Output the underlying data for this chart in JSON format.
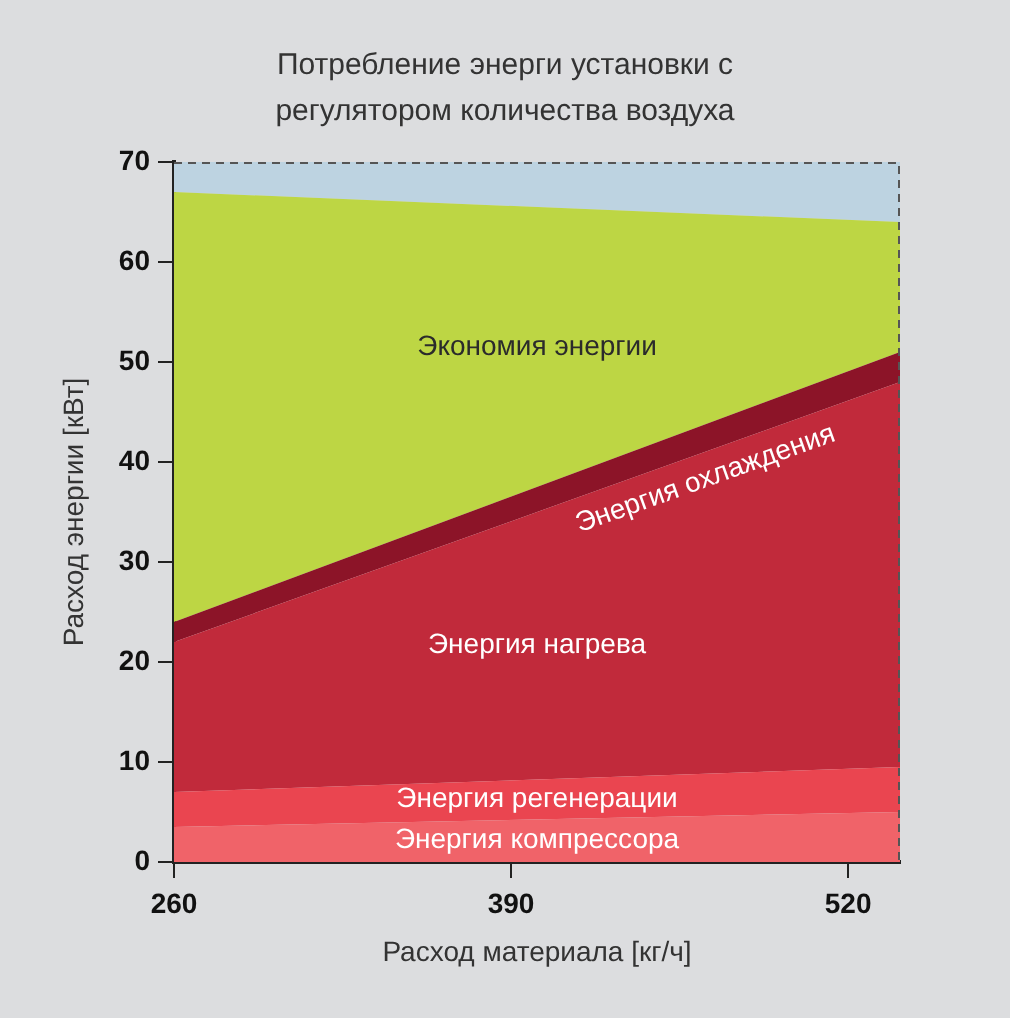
{
  "chart_data": {
    "type": "area",
    "title": "Потребление энерги установки с регулятором количества воздуха",
    "xlabel": "Расход материала [кг/ч]",
    "ylabel": "Расход энергии [кВт]",
    "x": [
      260,
      540
    ],
    "stacked": true,
    "series": [
      {
        "name": "Энергия компрессора",
        "color": "#f06369",
        "values": [
          3.5,
          5
        ]
      },
      {
        "name": "Энергия регенерации",
        "color": "#ea4550",
        "values": [
          3.5,
          4.5
        ]
      },
      {
        "name": "Энергия нагрева",
        "color": "#c12a3b",
        "values": [
          15,
          38.5
        ]
      },
      {
        "name": "Энергия охлаждения",
        "color": "#8c1428",
        "values": [
          2,
          3
        ]
      },
      {
        "name": "Экономия энергии",
        "color": "#bdd644",
        "values": [
          43,
          13
        ]
      },
      {
        "color": "#bdd3e1",
        "values": [
          3,
          6
        ]
      }
    ],
    "xlim": [
      260,
      540
    ],
    "xticks": [
      260,
      390,
      520
    ],
    "ylim": [
      0,
      70
    ],
    "yticks": [
      0,
      10,
      20,
      30,
      40,
      50,
      60,
      70
    ],
    "grid": false,
    "legend": false
  }
}
